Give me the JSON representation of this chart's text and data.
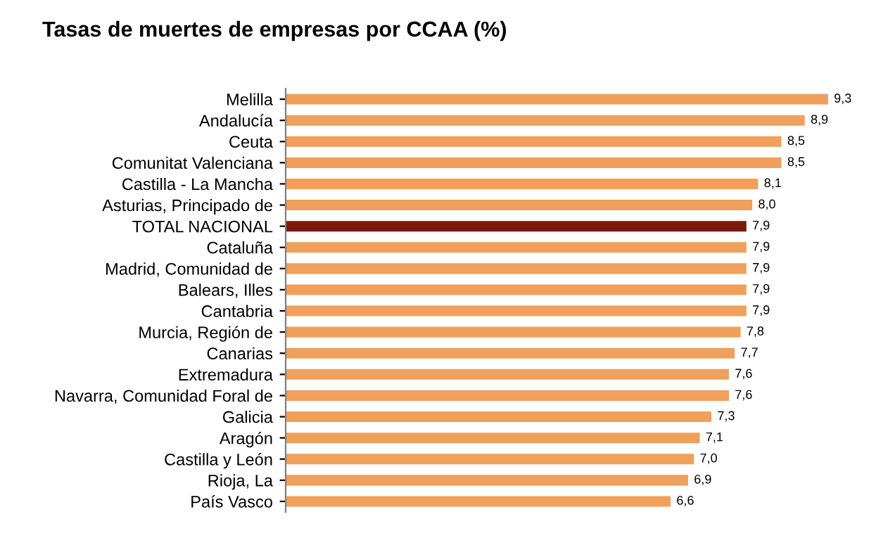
{
  "chart_data": {
    "type": "bar",
    "orientation": "horizontal",
    "title": "Tasas de muertes de empresas por CCAA (%)",
    "categories": [
      "Melilla",
      "Andalucía",
      "Ceuta",
      "Comunitat Valenciana",
      "Castilla - La Mancha",
      "Asturias, Principado de",
      "TOTAL NACIONAL",
      "Cataluña",
      "Madrid, Comunidad de",
      "Balears, Illes",
      "Cantabria",
      "Murcia, Región de",
      "Canarias",
      "Extremadura",
      "Navarra, Comunidad Foral de",
      "Galicia",
      "Aragón",
      "Castilla y León",
      "Rioja, La",
      "País Vasco"
    ],
    "values": [
      9.3,
      8.9,
      8.5,
      8.5,
      8.1,
      8.0,
      7.9,
      7.9,
      7.9,
      7.9,
      7.9,
      7.8,
      7.7,
      7.6,
      7.6,
      7.3,
      7.1,
      7.0,
      6.9,
      6.6
    ],
    "value_labels": [
      "9,3",
      "8,9",
      "8,5",
      "8,5",
      "8,1",
      "8,0",
      "7,9",
      "7,9",
      "7,9",
      "7,9",
      "7,9",
      "7,8",
      "7,7",
      "7,6",
      "7,6",
      "7,3",
      "7,1",
      "7,0",
      "6,9",
      "6,6"
    ],
    "colors": [
      "#f0a05a",
      "#f0a05a",
      "#f0a05a",
      "#f0a05a",
      "#f0a05a",
      "#f0a05a",
      "#7a1a0e",
      "#f0a05a",
      "#f0a05a",
      "#f0a05a",
      "#f0a05a",
      "#f0a05a",
      "#f0a05a",
      "#f0a05a",
      "#f0a05a",
      "#f0a05a",
      "#f0a05a",
      "#f0a05a",
      "#f0a05a",
      "#f0a05a"
    ],
    "tick_labels": "y",
    "grid": false,
    "legend": false
  }
}
